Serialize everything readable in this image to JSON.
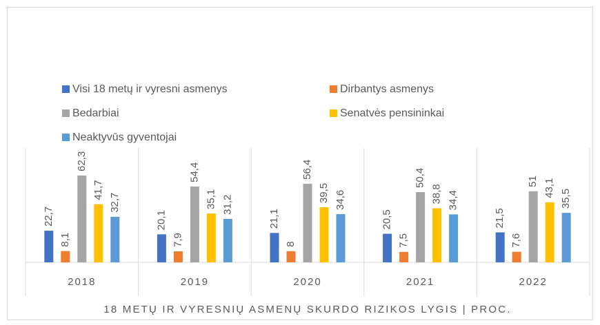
{
  "chart_data": {
    "type": "bar",
    "title": "18 METŲ IR VYRESNIŲ ASMENŲ SKURDO RIZIKOS LYGIS | PROC.",
    "categories": [
      "2018",
      "2019",
      "2020",
      "2021",
      "2022"
    ],
    "series": [
      {
        "name": "Visi 18 metų ir vyresni asmenys",
        "color": "#4472c4",
        "values": [
          22.7,
          20.1,
          21.1,
          20.5,
          21.5
        ],
        "value_labels": [
          "22,7",
          "20,1",
          "21,1",
          "20,5",
          "21,5"
        ]
      },
      {
        "name": "Dirbantys asmenys",
        "color": "#ed7d31",
        "values": [
          8.1,
          7.9,
          8,
          7.5,
          7.6
        ],
        "value_labels": [
          "8,1",
          "7,9",
          "8",
          "7,5",
          "7,6"
        ]
      },
      {
        "name": "Bedarbiai",
        "color": "#a5a5a5",
        "values": [
          62.3,
          54.4,
          56.4,
          50.4,
          51
        ],
        "value_labels": [
          "62,3",
          "54,4",
          "56,4",
          "50,4",
          "51"
        ]
      },
      {
        "name": "Senatvės pensininkai",
        "color": "#ffc000",
        "values": [
          41.7,
          35.1,
          39.5,
          38.8,
          43.1
        ],
        "value_labels": [
          "41,7",
          "35,1",
          "39,5",
          "38,8",
          "43,1"
        ]
      },
      {
        "name": "Neaktyvūs gyventojai",
        "color": "#5b9bd5",
        "values": [
          32.7,
          31.2,
          34.6,
          34.4,
          35.5
        ],
        "value_labels": [
          "32,7",
          "31,2",
          "34,6",
          "34,4",
          "35,5"
        ]
      }
    ],
    "ylim": [
      0,
      82
    ],
    "legend": "top"
  }
}
